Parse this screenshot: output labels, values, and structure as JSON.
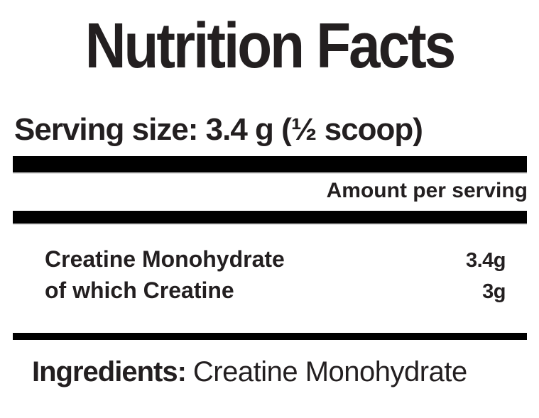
{
  "label": {
    "title": "Nutrition Facts",
    "serving_size": "Serving size: 3.4 g (½ scoop)",
    "amount_per_serving": "Amount per serving",
    "nutrients": [
      {
        "name": "Creatine Monohydrate",
        "amount": "3.4g"
      },
      {
        "name": "of which Creatine",
        "amount": "3g"
      }
    ],
    "ingredients_label": "Ingredients:",
    "ingredients_value": "Creatine Monohydrate"
  },
  "colors": {
    "text": "#231f20",
    "bar": "#000000",
    "background": "#ffffff"
  }
}
